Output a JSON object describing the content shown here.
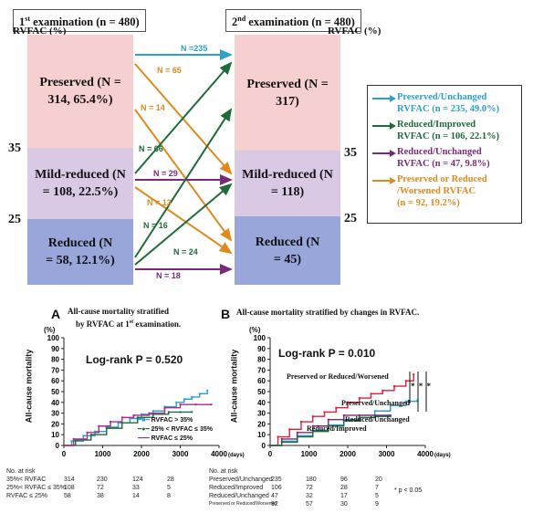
{
  "top": {
    "first_exam": "examination (n = 480)",
    "first_prefix": "1",
    "first_sup": "st",
    "second_exam": "examination (n = 480)",
    "second_prefix": "2",
    "second_sup": "nd",
    "rvfac_label": "RVFAC  (%)",
    "left_segments": [
      {
        "label": "Preserved (N = 314, 65.4%)",
        "color": "#f6cfd0"
      },
      {
        "label": "Mild-reduced (N = 108, 22.5%)",
        "color": "#d9c9e4"
      },
      {
        "label": "Reduced (N = 58, 12.1%)",
        "color": "#98a6da"
      }
    ],
    "right_segments": [
      {
        "label": "Preserved (N = 317)",
        "color": "#f6cfd0"
      },
      {
        "label": "Mild-reduced (N = 118)",
        "color": "#d9c9e4"
      },
      {
        "label": "Reduced (N = 45)",
        "color": "#98a6da"
      }
    ],
    "ticks": [
      "35",
      "25"
    ],
    "flows": [
      {
        "label": "N =235",
        "color": "#2f9fd0"
      },
      {
        "label": "N = 65",
        "color": "#e08a1e"
      },
      {
        "label": "N = 14",
        "color": "#e08a1e"
      },
      {
        "label": "N = 66",
        "color": "#1f6b3a"
      },
      {
        "label": "N = 29",
        "color": "#7a2a78"
      },
      {
        "label": "N = 13",
        "color": "#e08a1e"
      },
      {
        "label": "N = 16",
        "color": "#1f6b3a"
      },
      {
        "label": "N = 24",
        "color": "#1f6b3a"
      },
      {
        "label": "N = 18",
        "color": "#7a2a78"
      }
    ],
    "legend": [
      {
        "line1": "Preserved/Unchanged",
        "line2": "RVFAC  (n = 235, 49.0%)",
        "color": "#2f9fd0"
      },
      {
        "line1": "Reduced/Improved",
        "line2": "RVFAC  (n = 106, 22.1%)",
        "color": "#1f6b3a"
      },
      {
        "line1": "Reduced/Unchanged",
        "line2": "RVFAC  (n = 47, 9.8%)",
        "color": "#7a2a78"
      },
      {
        "line1": "Preserved or Reduced",
        "line2": "/Worsened RVFAC",
        "line3": "(n = 92, 19.2%)",
        "color": "#e08a1e"
      }
    ]
  },
  "panelA": {
    "letter": "A",
    "title1": "All-cause mortality stratified",
    "title2": "by RVFAC at 1",
    "title2_sup": "st",
    "title2_end": "examination.",
    "ylab_unit": "(%)",
    "ylabel": "All-cause mortality",
    "logrank": "Log-rank P = 0.520",
    "xunit": "(days)",
    "legend": [
      "RVFAC > 35%",
      "25% <  RVFAC  ≤ 35%",
      "RVFAC ≤ 25%"
    ],
    "risk_title": "No. at risk",
    "risk_rows": [
      {
        "name": "35%< RVFAC",
        "vals": [
          "314",
          "230",
          "124",
          "28"
        ]
      },
      {
        "name": "25%< RVFAC ≤ 35%",
        "vals": [
          "108",
          "72",
          "33",
          "5"
        ]
      },
      {
        "name": "RVFAC ≤ 25%",
        "vals": [
          "58",
          "38",
          "14",
          "8"
        ]
      }
    ]
  },
  "panelB": {
    "letter": "B",
    "title": "All-cause mortality stratified by changes in RVFAC.",
    "ylab_unit": "(%)",
    "ylabel": "All-cause mortality",
    "logrank": "Log-rank P = 0.010",
    "xunit": "(days)",
    "labels": [
      "Preserved or Reduced/Worsened",
      "Preserved/Unchanged",
      "Reduced/Unchanged",
      "Reduced/Improved"
    ],
    "sig": "* p < 0.05",
    "stars": "* * *",
    "risk_title": "No. at risk",
    "risk_rows": [
      {
        "name": "Preserved/Unchanged",
        "vals": [
          "235",
          "180",
          "96",
          "20"
        ]
      },
      {
        "name": "Reduced/Improved",
        "vals": [
          "106",
          "72",
          "28",
          "7"
        ]
      },
      {
        "name": "Reduced/Unchanged",
        "vals": [
          "47",
          "32",
          "17",
          "5"
        ]
      },
      {
        "name": "Preserved or Reduced/Worsened",
        "vals": [
          "92",
          "57",
          "30",
          "9"
        ]
      }
    ]
  },
  "chart_data": [
    {
      "type": "line",
      "title": "All-cause mortality stratified by RVFAC at 1st examination.",
      "ylabel": "All-cause mortality (%)",
      "xlabel": "(days)",
      "xlim": [
        0,
        4000
      ],
      "ylim": [
        0,
        100
      ],
      "xticks": [
        "0",
        "1000",
        "2000",
        "3000",
        "4000"
      ],
      "yticks": [
        "0",
        "10",
        "20",
        "30",
        "40",
        "50",
        "60",
        "70",
        "80",
        "90",
        "100"
      ],
      "series": [
        {
          "name": "RVFAC > 35%",
          "color": "#2f9fd0",
          "x": [
            0,
            200,
            500,
            800,
            1100,
            1400,
            1700,
            2000,
            2300,
            2600,
            2900,
            3100,
            3300,
            3500,
            3700
          ],
          "y": [
            0,
            4,
            9,
            13,
            17,
            21,
            25,
            29,
            32,
            36,
            40,
            43,
            45,
            48,
            51
          ]
        },
        {
          "name": "25% <  RVFAC  ≤ 35%",
          "color": "#1f6b3a",
          "x": [
            0,
            300,
            700,
            1100,
            1500,
            1900,
            2300,
            2700,
            3000,
            3300
          ],
          "y": [
            0,
            5,
            10,
            16,
            21,
            26,
            29,
            31,
            31,
            31
          ]
        },
        {
          "name": "RVFAC ≤ 25%",
          "color": "#b0288a",
          "x": [
            0,
            250,
            600,
            900,
            1200,
            1500,
            1800,
            2200,
            2600,
            3000,
            3400,
            3800
          ],
          "y": [
            0,
            6,
            12,
            18,
            22,
            26,
            28,
            30,
            35,
            38,
            38,
            38
          ]
        }
      ]
    },
    {
      "type": "line",
      "title": "All-cause mortality stratified by changes in RVFAC.",
      "ylabel": "All-cause mortality (%)",
      "xlabel": "(days)",
      "xlim": [
        0,
        4000
      ],
      "ylim": [
        0,
        100
      ],
      "xticks": [
        "0",
        "1000",
        "2000",
        "3000",
        "4000"
      ],
      "yticks": [
        "0",
        "10",
        "20",
        "30",
        "40",
        "50",
        "60",
        "70",
        "80",
        "90",
        "100"
      ],
      "series": [
        {
          "name": "Preserved or Reduced/Worsened",
          "color": "#e0203a",
          "x": [
            0,
            200,
            500,
            800,
            1100,
            1400,
            1700,
            2000,
            2300,
            2600,
            2900,
            3200,
            3500,
            3700
          ],
          "y": [
            0,
            8,
            15,
            22,
            27,
            31,
            35,
            40,
            44,
            48,
            51,
            55,
            60,
            66
          ]
        },
        {
          "name": "Preserved/Unchanged",
          "color": "#2f9fd0",
          "x": [
            0,
            300,
            700,
            1100,
            1500,
            1900,
            2300,
            2700,
            3100,
            3500,
            3800
          ],
          "y": [
            0,
            4,
            9,
            14,
            19,
            24,
            28,
            32,
            37,
            41,
            42
          ]
        },
        {
          "name": "Reduced/Unchanged",
          "color": "#7a2a78",
          "x": [
            0,
            300,
            700,
            1100,
            1500,
            1900,
            2300,
            2700,
            3100
          ],
          "y": [
            0,
            6,
            12,
            18,
            24,
            28,
            28,
            28,
            28
          ]
        },
        {
          "name": "Reduced/Improved",
          "color": "#1f6b3a",
          "x": [
            0,
            300,
            700,
            1100,
            1500,
            1900,
            2300,
            2700,
            3100
          ],
          "y": [
            0,
            3,
            8,
            13,
            18,
            23,
            26,
            27,
            27
          ]
        }
      ]
    }
  ]
}
